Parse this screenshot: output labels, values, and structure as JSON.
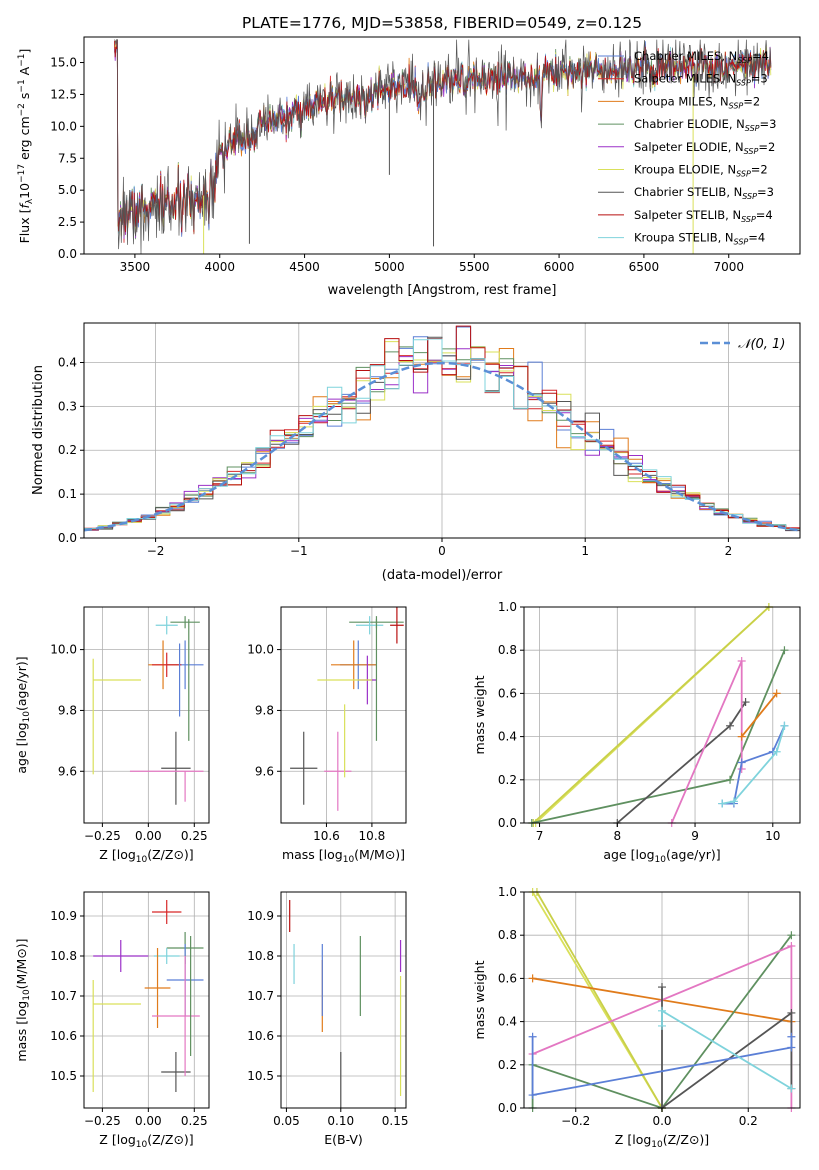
{
  "chart_data": [
    {
      "type": "line",
      "title": "PLATE=1776, MJD=53858, FIBERID=0549, z=0.125",
      "xlabel": "wavelength [Angstrom, rest frame]",
      "ylabel": "Flux [f_λ 10^-17 erg cm^-2 s^-1 A^-1]",
      "xlim": [
        3200,
        7420
      ],
      "ylim": [
        0,
        17
      ],
      "xticks": [
        3500,
        4000,
        4500,
        5000,
        5500,
        6000,
        6500,
        7000
      ],
      "yticks": [
        0.0,
        2.5,
        5.0,
        7.5,
        10.0,
        12.5,
        15.0
      ],
      "legend_position": "top-right",
      "continuum": {
        "x": [
          3400,
          3600,
          3800,
          3900,
          4000,
          4300,
          4600,
          5000,
          5500,
          6000,
          6500,
          7000,
          7250
        ],
        "y": [
          2.9,
          3.8,
          4.0,
          4.4,
          8.0,
          10.3,
          11.9,
          12.8,
          13.6,
          14.3,
          14.6,
          14.8,
          15.0
        ]
      },
      "series": [
        {
          "name": "Chabrier MILES, N_SSP=4",
          "color": "#5b7fd6"
        },
        {
          "name": "Salpeter MILES, N_SSP=3",
          "color": "#d62728"
        },
        {
          "name": "Kroupa MILES, N_SSP=2",
          "color": "#e07b1b"
        },
        {
          "name": "Chabrier ELODIE, N_SSP=3",
          "color": "#5f9060"
        },
        {
          "name": "Salpeter ELODIE, N_SSP=2",
          "color": "#9b30c8"
        },
        {
          "name": "Kroupa ELODIE, N_SSP=2",
          "color": "#d9e05a"
        },
        {
          "name": "Chabrier STELIB, N_SSP=3",
          "color": "#555555"
        },
        {
          "name": "Salpeter STELIB, N_SSP=4",
          "color": "#b80f0f"
        },
        {
          "name": "Kroupa STELIB, N_SSP=4",
          "color": "#7fd3dc"
        }
      ]
    },
    {
      "type": "bar",
      "xlabel": "(data-model)/error",
      "ylabel": "Normed distribution",
      "xlim": [
        -2.5,
        2.5
      ],
      "ylim": [
        0,
        0.49
      ],
      "xticks": [
        -2,
        -1,
        0,
        1,
        2
      ],
      "yticks": [
        0.0,
        0.1,
        0.2,
        0.3,
        0.4
      ],
      "grid": true,
      "legend_position": "top-right",
      "legend": [
        {
          "name": "𝒩(0, 1)",
          "color": "#5b8fd6"
        }
      ],
      "bin_width": 0.1,
      "bins_start": -2.5
    },
    {
      "type": "scatter",
      "xlabel": "Z [log10(Z/Z⊙)]",
      "ylabel": "age  [log10(age/yr)]",
      "xlim": [
        -0.35,
        0.33
      ],
      "ylim": [
        9.43,
        10.14
      ],
      "xticks": [
        -0.25,
        0.0,
        0.25
      ],
      "xtick_labels": [
        "−0.25",
        "0.00",
        "0.25"
      ],
      "yticks": [
        9.6,
        9.8,
        10.0
      ],
      "grid": true,
      "points": [
        {
          "x": 0.15,
          "y": 9.61,
          "xerr": 0.08,
          "yerr": 0.12,
          "color": "#555555"
        },
        {
          "x": 0.2,
          "y": 10.09,
          "xerr": 0.08,
          "yerr": 0.02,
          "color": "#5f9060"
        },
        {
          "x": 0.1,
          "y": 10.08,
          "xerr": 0.06,
          "yerr": 0.03,
          "color": "#7fd3dc"
        },
        {
          "x": 0.2,
          "y": 9.95,
          "xerr": 0.1,
          "yerr": 0.08,
          "color": "#5b7fd6"
        },
        {
          "x": 0.08,
          "y": 9.95,
          "xerr": 0.08,
          "yerr": 0.08,
          "color": "#e07b1b"
        },
        {
          "x": 0.1,
          "y": 9.95,
          "xerr": 0.08,
          "yerr": 0.04,
          "color": "#d62728"
        },
        {
          "x": 0.1,
          "y": 9.6,
          "xerr": 0.2,
          "yerr": 0.0,
          "color": "#e377c2"
        },
        {
          "x": 0.2,
          "y": 9.55,
          "xerr": 0.0,
          "yerr": 0.05,
          "color": "#e377c2"
        },
        {
          "x": -0.17,
          "y": 9.9,
          "xerr": 0.13,
          "yerr": 0.0,
          "color": "#d9e05a"
        },
        {
          "x": -0.3,
          "y": 9.78,
          "xerr": 0.0,
          "yerr": 0.19,
          "color": "#d9e05a"
        },
        {
          "x": 0.22,
          "y": 9.9,
          "xerr": 0.0,
          "yerr": 0.2,
          "color": "#5f9060"
        },
        {
          "x": 0.17,
          "y": 9.9,
          "xerr": 0.0,
          "yerr": 0.12,
          "color": "#5b7fd6"
        }
      ]
    },
    {
      "type": "scatter",
      "xlabel": "mass [log10(M/M⊙)]",
      "ylabel": "",
      "xlim": [
        10.4,
        10.95
      ],
      "ylim": [
        9.43,
        10.14
      ],
      "xticks": [
        10.6,
        10.8
      ],
      "yticks": [
        9.6,
        9.8,
        10.0
      ],
      "grid": true,
      "points": [
        {
          "x": 10.5,
          "y": 9.61,
          "xerr": 0.06,
          "yerr": 0.12,
          "color": "#555555"
        },
        {
          "x": 10.82,
          "y": 10.09,
          "xerr": 0.12,
          "yerr": 0.02,
          "color": "#5f9060"
        },
        {
          "x": 10.79,
          "y": 10.08,
          "xerr": 0.06,
          "yerr": 0.03,
          "color": "#7fd3dc"
        },
        {
          "x": 10.74,
          "y": 9.95,
          "xerr": 0.08,
          "yerr": 0.08,
          "color": "#5b7fd6"
        },
        {
          "x": 10.72,
          "y": 9.95,
          "xerr": 0.1,
          "yerr": 0.08,
          "color": "#e07b1b"
        },
        {
          "x": 10.91,
          "y": 10.08,
          "xerr": 0.03,
          "yerr": 0.06,
          "color": "#b80f0f"
        },
        {
          "x": 10.78,
          "y": 9.9,
          "xerr": 0.04,
          "yerr": 0.08,
          "color": "#9b30c8"
        },
        {
          "x": 10.65,
          "y": 9.6,
          "xerr": 0.06,
          "yerr": 0.13,
          "color": "#e377c2"
        },
        {
          "x": 10.68,
          "y": 9.9,
          "xerr": 0.12,
          "yerr": 0.0,
          "color": "#d9e05a"
        },
        {
          "x": 10.68,
          "y": 9.7,
          "xerr": 0.0,
          "yerr": 0.12,
          "color": "#d9e05a"
        },
        {
          "x": 10.82,
          "y": 9.9,
          "xerr": 0.0,
          "yerr": 0.2,
          "color": "#5f9060"
        }
      ]
    },
    {
      "type": "line",
      "xlabel": "age  [log10(age/yr)]",
      "ylabel": "mass weight",
      "xlim": [
        6.8,
        10.35
      ],
      "ylim": [
        0,
        1.0
      ],
      "xticks": [
        7,
        8,
        9,
        10
      ],
      "yticks": [
        0.0,
        0.2,
        0.4,
        0.6,
        0.8,
        1.0
      ],
      "grid": true,
      "series": [
        {
          "color": "#d9e05a",
          "x": [
            6.95,
            9.95
          ],
          "y": [
            0.0,
            1.0
          ]
        },
        {
          "color": "#c9d049",
          "x": [
            6.92,
            9.95
          ],
          "y": [
            0.0,
            1.0
          ]
        },
        {
          "color": "#5f9060",
          "x": [
            6.9,
            9.45,
            10.15
          ],
          "y": [
            0.0,
            0.2,
            0.8
          ]
        },
        {
          "color": "#555555",
          "x": [
            8.0,
            9.45,
            9.65
          ],
          "y": [
            0.0,
            0.45,
            0.56
          ]
        },
        {
          "color": "#e377c2",
          "x": [
            8.7,
            9.6,
            9.6
          ],
          "y": [
            0.0,
            0.75,
            0.25
          ]
        },
        {
          "color": "#e07b1b",
          "x": [
            9.6,
            10.05
          ],
          "y": [
            0.4,
            0.6
          ]
        },
        {
          "color": "#5b7fd6",
          "x": [
            9.35,
            9.5,
            9.6,
            10.0,
            10.15
          ],
          "y": [
            0.09,
            0.09,
            0.28,
            0.33,
            0.45
          ]
        },
        {
          "color": "#7fd3dc",
          "x": [
            9.35,
            9.5,
            10.05,
            10.15
          ],
          "y": [
            0.09,
            0.1,
            0.33,
            0.45
          ]
        }
      ]
    },
    {
      "type": "scatter",
      "xlabel": "Z [log10(Z/Z⊙)]",
      "ylabel": "mass [log10(M/M⊙)]",
      "xlim": [
        -0.35,
        0.33
      ],
      "ylim": [
        10.42,
        10.96
      ],
      "xticks": [
        -0.25,
        0.0,
        0.25
      ],
      "xtick_labels": [
        "−0.25",
        "0.00",
        "0.25"
      ],
      "yticks": [
        10.5,
        10.6,
        10.7,
        10.8,
        10.9
      ],
      "grid": true,
      "points": [
        {
          "x": 0.15,
          "y": 10.51,
          "xerr": 0.08,
          "yerr": 0.05,
          "color": "#555555"
        },
        {
          "x": 0.1,
          "y": 10.91,
          "xerr": 0.08,
          "yerr": 0.03,
          "color": "#d62728"
        },
        {
          "x": 0.2,
          "y": 10.82,
          "xerr": 0.1,
          "yerr": 0.04,
          "color": "#5f9060"
        },
        {
          "x": 0.1,
          "y": 10.8,
          "xerr": 0.07,
          "yerr": 0.02,
          "color": "#7fd3dc"
        },
        {
          "x": -0.15,
          "y": 10.8,
          "xerr": 0.15,
          "yerr": 0.04,
          "color": "#9b30c8"
        },
        {
          "x": 0.2,
          "y": 10.74,
          "xerr": 0.1,
          "yerr": 0.09,
          "color": "#5b7fd6"
        },
        {
          "x": 0.05,
          "y": 10.72,
          "xerr": 0.07,
          "yerr": 0.1,
          "color": "#e07b1b"
        },
        {
          "x": -0.17,
          "y": 10.68,
          "xerr": 0.13,
          "yerr": 0.0,
          "color": "#d9e05a"
        },
        {
          "x": -0.3,
          "y": 10.6,
          "xerr": 0.0,
          "yerr": 0.14,
          "color": "#d9e05a"
        },
        {
          "x": 0.15,
          "y": 10.65,
          "xerr": 0.13,
          "yerr": 0.0,
          "color": "#e377c2"
        },
        {
          "x": 0.2,
          "y": 10.65,
          "xerr": 0.0,
          "yerr": 0.15,
          "color": "#e377c2"
        },
        {
          "x": 0.23,
          "y": 10.7,
          "xerr": 0.0,
          "yerr": 0.15,
          "color": "#5f9060"
        }
      ]
    },
    {
      "type": "scatter",
      "xlabel": "E(B-V)",
      "ylabel": "",
      "xlim": [
        0.045,
        0.16
      ],
      "ylim": [
        10.42,
        10.96
      ],
      "xticks": [
        0.05,
        0.1,
        0.15
      ],
      "xtick_labels": [
        "0.05",
        "0.10",
        "0.15"
      ],
      "yticks": [
        10.5,
        10.6,
        10.7,
        10.8,
        10.9
      ],
      "grid": true,
      "points": [
        {
          "x": 0.053,
          "y": 10.9,
          "xerr": 0.0,
          "yerr": 0.04,
          "color": "#b80f0f"
        },
        {
          "x": 0.057,
          "y": 10.78,
          "xerr": 0.0,
          "yerr": 0.05,
          "color": "#7fd3dc"
        },
        {
          "x": 0.083,
          "y": 10.7,
          "xerr": 0.0,
          "yerr": 0.09,
          "color": "#e07b1b"
        },
        {
          "x": 0.083,
          "y": 10.74,
          "xerr": 0.0,
          "yerr": 0.09,
          "color": "#5b7fd6"
        },
        {
          "x": 0.1,
          "y": 10.49,
          "xerr": 0.0,
          "yerr": 0.07,
          "color": "#555555"
        },
        {
          "x": 0.118,
          "y": 10.75,
          "xerr": 0.0,
          "yerr": 0.1,
          "color": "#5f9060"
        },
        {
          "x": 0.155,
          "y": 10.8,
          "xerr": 0.0,
          "yerr": 0.04,
          "color": "#9b30c8"
        },
        {
          "x": 0.155,
          "y": 10.6,
          "xerr": 0.0,
          "yerr": 0.15,
          "color": "#d9e05a"
        }
      ]
    },
    {
      "type": "line",
      "xlabel": "Z [log10(Z/Z⊙)]",
      "ylabel": "mass weight",
      "xlim": [
        -0.32,
        0.32
      ],
      "ylim": [
        0,
        1.0
      ],
      "xticks": [
        -0.2,
        0.0,
        0.2
      ],
      "xtick_labels": [
        "−0.2",
        "0.0",
        "0.2"
      ],
      "yticks": [
        0.0,
        0.2,
        0.4,
        0.6,
        0.8,
        1.0
      ],
      "grid": true,
      "series": [
        {
          "color": "#d9e05a",
          "x": [
            -0.3,
            0.0
          ],
          "y": [
            1.0,
            0.0
          ]
        },
        {
          "color": "#c9d049",
          "x": [
            -0.29,
            0.0
          ],
          "y": [
            1.0,
            0.0
          ]
        },
        {
          "color": "#e07b1b",
          "x": [
            -0.3,
            0.3
          ],
          "y": [
            0.6,
            0.4
          ]
        },
        {
          "color": "#5f9060",
          "x": [
            -0.3,
            -0.3,
            0.0,
            0.3
          ],
          "y": [
            0.0,
            0.2,
            0.0,
            0.8
          ]
        },
        {
          "color": "#e377c2",
          "x": [
            -0.3,
            0.3,
            0.3
          ],
          "y": [
            0.25,
            0.75,
            0.0
          ]
        },
        {
          "color": "#555555",
          "x": [
            0.0,
            0.0,
            0.3,
            0.3
          ],
          "y": [
            0.56,
            0.0,
            0.44,
            0.09
          ]
        },
        {
          "color": "#5b7fd6",
          "x": [
            -0.3,
            -0.3,
            0.3,
            0.3
          ],
          "y": [
            0.33,
            0.06,
            0.28,
            0.33
          ]
        },
        {
          "color": "#7fd3dc",
          "x": [
            0.0,
            0.0,
            0.3
          ],
          "y": [
            0.38,
            0.45,
            0.09
          ]
        }
      ]
    }
  ]
}
